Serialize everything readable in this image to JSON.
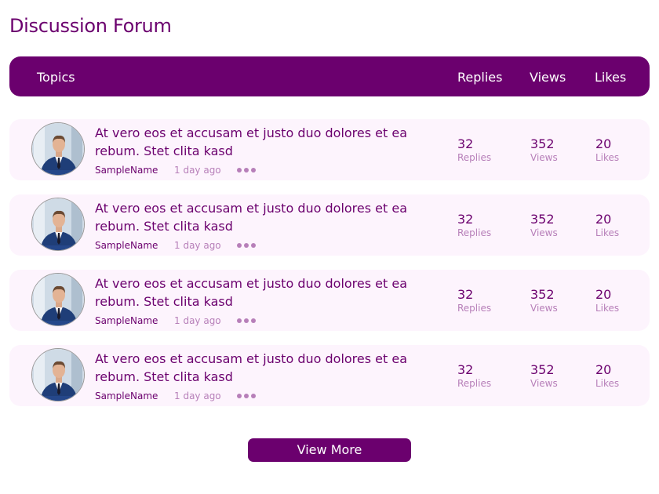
{
  "title": "Discussion Forum",
  "header": {
    "topics": "Topics",
    "replies": "Replies",
    "views": "Views",
    "likes": "Likes"
  },
  "posts": [
    {
      "topic": "At vero eos et accusam et justo duo dolores et ea rebum. Stet clita kasd",
      "author": "SampleName",
      "time": "1 day ago",
      "replies": "32",
      "replies_label": "Replies",
      "views": "352",
      "views_label": "Views",
      "likes": "20",
      "likes_label": "Likes"
    },
    {
      "topic": "At vero eos et accusam et justo duo dolores et ea rebum. Stet clita kasd",
      "author": "SampleName",
      "time": "1 day ago",
      "replies": "32",
      "replies_label": "Replies",
      "views": "352",
      "views_label": "Views",
      "likes": "20",
      "likes_label": "Likes"
    },
    {
      "topic": "At vero eos et accusam et justo duo dolores et ea rebum. Stet clita kasd",
      "author": "SampleName",
      "time": "1 day ago",
      "replies": "32",
      "replies_label": "Replies",
      "views": "352",
      "views_label": "Views",
      "likes": "20",
      "likes_label": "Likes"
    },
    {
      "topic": "At vero eos et accusam et justo duo dolores et ea rebum. Stet clita kasd",
      "author": "SampleName",
      "time": "1 day ago",
      "replies": "32",
      "replies_label": "Replies",
      "views": "352",
      "views_label": "Views",
      "likes": "20",
      "likes_label": "Likes"
    }
  ],
  "view_more": "View More",
  "colors": {
    "primary": "#6b006e",
    "muted": "#b77fb9",
    "row_bg": "#fdf4fd"
  }
}
